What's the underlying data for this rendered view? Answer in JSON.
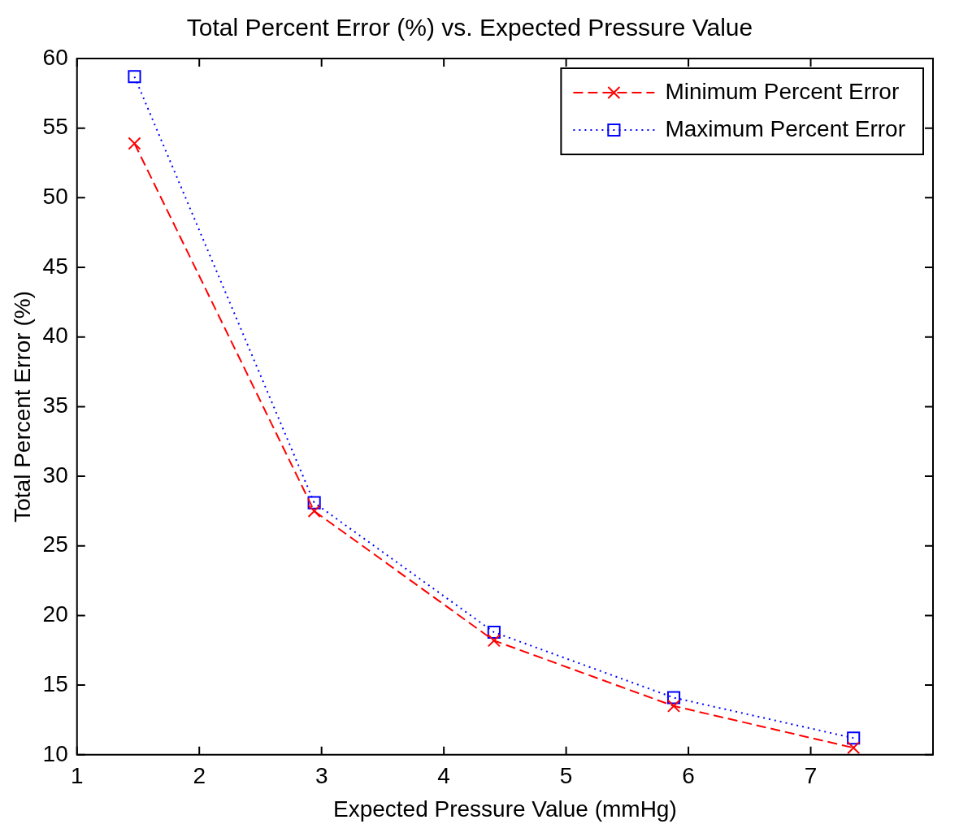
{
  "chart_data": {
    "type": "line",
    "title": "Total Percent Error (%) vs. Expected Pressure Value",
    "xlabel": "Expected Pressure Value (mmHg)",
    "ylabel": "Total Percent Error (%)",
    "x": [
      1.47,
      2.94,
      4.41,
      5.88,
      7.35
    ],
    "series": [
      {
        "name": "Minimum Percent Error",
        "color": "#ff0000",
        "values": [
          53.9,
          27.5,
          18.2,
          13.5,
          10.5
        ],
        "marker": "cross",
        "line_style": "dashed"
      },
      {
        "name": "Maximum Percent Error",
        "color": "#0000ff",
        "values": [
          58.7,
          28.1,
          18.8,
          14.1,
          11.2
        ],
        "marker": "square",
        "line_style": "dotted"
      }
    ],
    "xlim": [
      1,
      8
    ],
    "xticks": [
      1,
      2,
      3,
      4,
      5,
      6,
      7
    ],
    "ylim": [
      10,
      60
    ],
    "yticks": [
      10,
      15,
      20,
      25,
      30,
      35,
      40,
      45,
      50,
      55,
      60
    ],
    "grid": false,
    "legend": "top right"
  }
}
